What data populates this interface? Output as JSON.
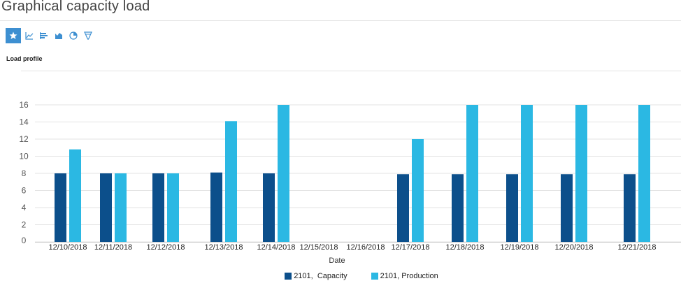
{
  "page": {
    "title": "Graphical capacity load"
  },
  "toolbar": {
    "buttons": [
      {
        "icon": "star-icon",
        "active": true
      },
      {
        "icon": "line-chart-icon",
        "active": false
      },
      {
        "icon": "bar-chart-icon",
        "active": false
      },
      {
        "icon": "area-chart-icon",
        "active": false
      },
      {
        "icon": "pie-chart-icon",
        "active": false
      },
      {
        "icon": "funnel-icon",
        "active": false
      }
    ]
  },
  "section": {
    "label": "Load profile"
  },
  "colors": {
    "capacity": "#0c4f8b",
    "production": "#2bb8e3",
    "grid": "#e3e3e3"
  },
  "chart_data": {
    "type": "bar",
    "title": "",
    "xlabel": "Date",
    "ylabel": "",
    "ylim": [
      0,
      16
    ],
    "yticks": [
      0,
      2,
      4,
      6,
      8,
      10,
      12,
      14,
      16
    ],
    "grid": true,
    "legend_position": "bottom",
    "categories": [
      "12/10/2018",
      "12/11/2018",
      "12/12/2018",
      "12/13/2018",
      "12/14/2018",
      "12/15/2018",
      "12/16/2018",
      "12/17/2018",
      "12/18/2018",
      "12/19/2018",
      "12/20/2018",
      "12/21/2018"
    ],
    "series": [
      {
        "name": "2101,  Capacity",
        "values": [
          8,
          8,
          8,
          8.1,
          8,
          0,
          0,
          7.9,
          7.9,
          7.9,
          7.9,
          7.9
        ]
      },
      {
        "name": "2101, Production",
        "values": [
          10.8,
          8,
          8,
          14.1,
          16,
          0,
          0,
          12,
          16,
          16,
          16,
          16
        ]
      }
    ]
  }
}
